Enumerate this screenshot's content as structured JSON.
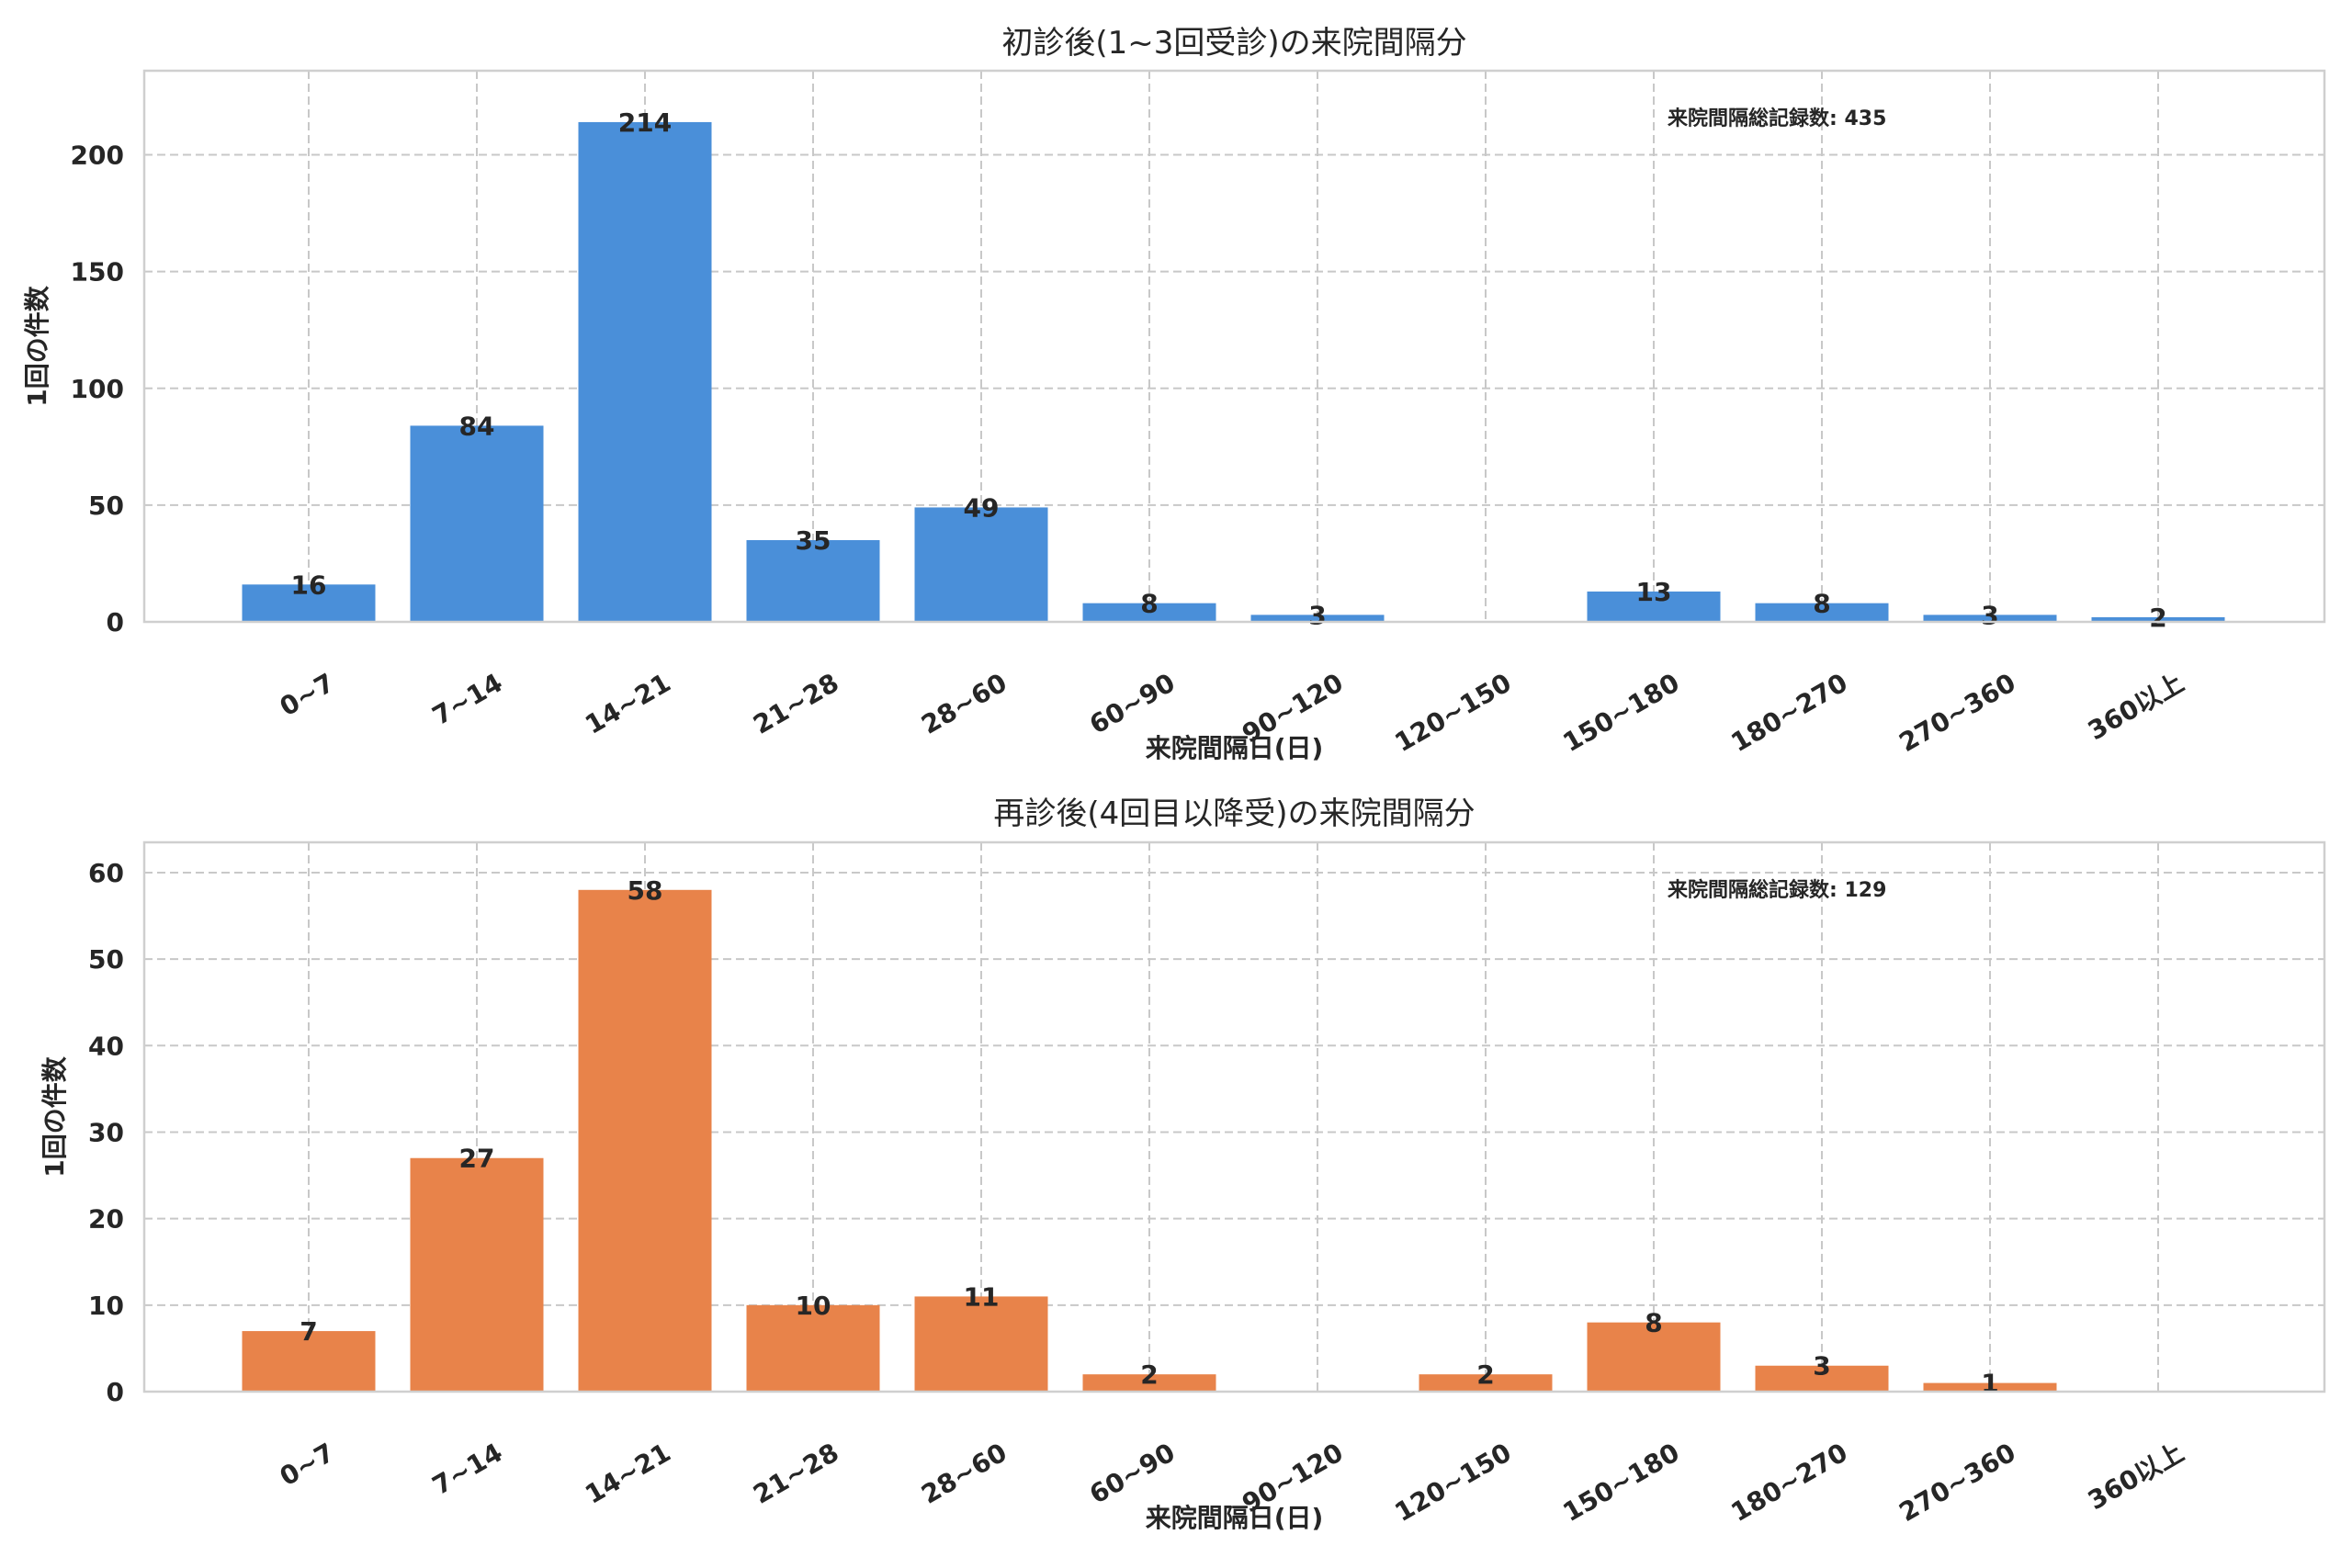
{
  "chart_data": [
    {
      "type": "bar",
      "title": "初診後(1~3回受診)の来院間隔分",
      "xlabel": "来院間隔日(日)",
      "ylabel": "1回の件数",
      "categories": [
        "0~7",
        "7~14",
        "14~21",
        "21~28",
        "28~60",
        "60~90",
        "90~120",
        "120~150",
        "150~180",
        "180~270",
        "270~360",
        "360以上"
      ],
      "values": [
        16,
        84,
        214,
        35,
        49,
        8,
        3,
        0,
        13,
        8,
        3,
        2
      ],
      "value_labels": [
        "16",
        "84",
        "214",
        "35",
        "49",
        "8",
        "3",
        "",
        "13",
        "8",
        "3",
        "2"
      ],
      "y_ticks": [
        0,
        50,
        100,
        150,
        200
      ],
      "ylim": [
        0,
        236
      ],
      "annotation": "来院間隔総記録数: 435",
      "color": "#4a8fd9",
      "grid": true
    },
    {
      "type": "bar",
      "title": "再診後(4回目以降受)の来院間隔分",
      "xlabel": "来院間隔日(日)",
      "ylabel": "1回の件数",
      "categories": [
        "0~7",
        "7~14",
        "14~21",
        "21~28",
        "28~60",
        "60~90",
        "90~120",
        "120~150",
        "150~180",
        "180~270",
        "270~360",
        "360以上"
      ],
      "values": [
        7,
        27,
        58,
        10,
        11,
        2,
        0,
        2,
        8,
        3,
        1,
        0
      ],
      "value_labels": [
        "7",
        "27",
        "58",
        "10",
        "11",
        "2",
        "",
        "2",
        "8",
        "3",
        "1",
        ""
      ],
      "y_ticks": [
        0,
        10,
        20,
        30,
        40,
        50,
        60
      ],
      "ylim": [
        0,
        63.5
      ],
      "annotation": "来院間隔総記録数: 129",
      "color": "#e8834a",
      "grid": true
    }
  ]
}
